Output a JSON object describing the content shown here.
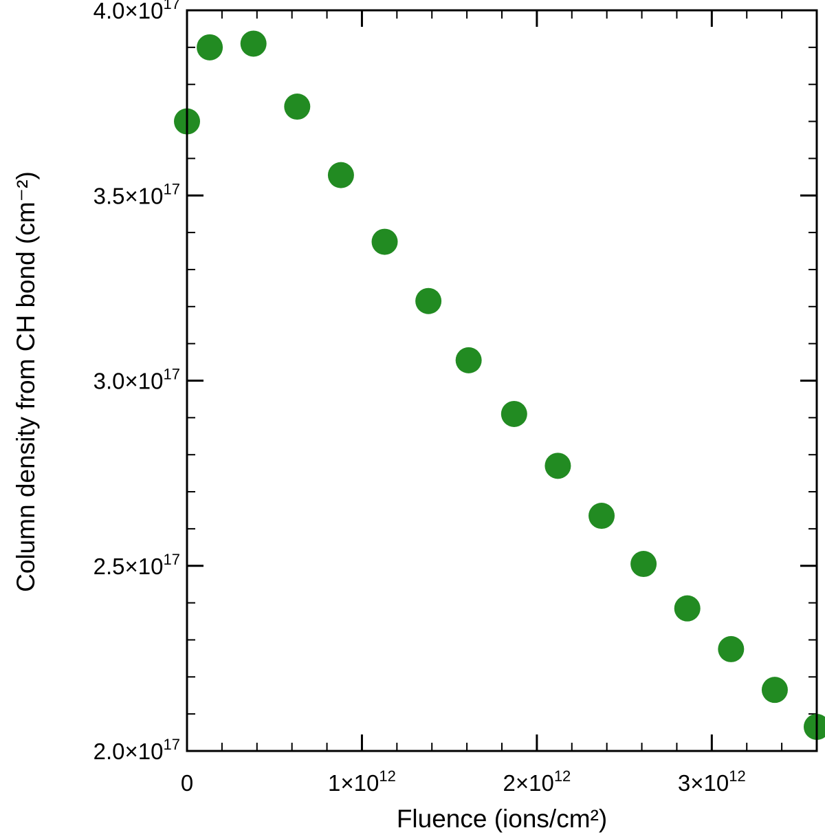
{
  "chart_data": {
    "type": "scatter",
    "title": "",
    "xlabel": "Fluence (ions/cm²)",
    "ylabel": "Column density from CH bond (cm⁻²)",
    "xlim": [
      0,
      3600000000000.0
    ],
    "ylim": [
      2e+17,
      4e+17
    ],
    "grid": false,
    "legend": "none",
    "marker_color": "#228B22",
    "x_ticks": [
      {
        "value": 0,
        "mantissa": "0",
        "exp": ""
      },
      {
        "value": 1000000000000.0,
        "mantissa": "1×10",
        "exp": "12"
      },
      {
        "value": 2000000000000.0,
        "mantissa": "2×10",
        "exp": "12"
      },
      {
        "value": 3000000000000.0,
        "mantissa": "3×10",
        "exp": "12"
      }
    ],
    "y_ticks": [
      {
        "value": 2e+17,
        "mantissa": "2.0×10",
        "exp": "17"
      },
      {
        "value": 2.5e+17,
        "mantissa": "2.5×10",
        "exp": "17"
      },
      {
        "value": 3e+17,
        "mantissa": "3.0×10",
        "exp": "17"
      },
      {
        "value": 3.5e+17,
        "mantissa": "3.5×10",
        "exp": "17"
      },
      {
        "value": 4e+17,
        "mantissa": "4.0×10",
        "exp": "17"
      }
    ],
    "series": [
      {
        "points": [
          {
            "x": 0.0,
            "y": 3.7e+17
          },
          {
            "x": 130000000000.0,
            "y": 3.9e+17
          },
          {
            "x": 380000000000.0,
            "y": 3.91e+17
          },
          {
            "x": 630000000000.0,
            "y": 3.74e+17
          },
          {
            "x": 880000000000.0,
            "y": 3.555e+17
          },
          {
            "x": 1130000000000.0,
            "y": 3.375e+17
          },
          {
            "x": 1380000000000.0,
            "y": 3.215e+17
          },
          {
            "x": 1610000000000.0,
            "y": 3.055e+17
          },
          {
            "x": 1870000000000.0,
            "y": 2.91e+17
          },
          {
            "x": 2120000000000.0,
            "y": 2.77e+17
          },
          {
            "x": 2370000000000.0,
            "y": 2.635e+17
          },
          {
            "x": 2610000000000.0,
            "y": 2.505e+17
          },
          {
            "x": 2860000000000.0,
            "y": 2.385e+17
          },
          {
            "x": 3110000000000.0,
            "y": 2.275e+17
          },
          {
            "x": 3360000000000.0,
            "y": 2.165e+17
          },
          {
            "x": 3600000000000.0,
            "y": 2.065e+17
          }
        ]
      }
    ]
  }
}
